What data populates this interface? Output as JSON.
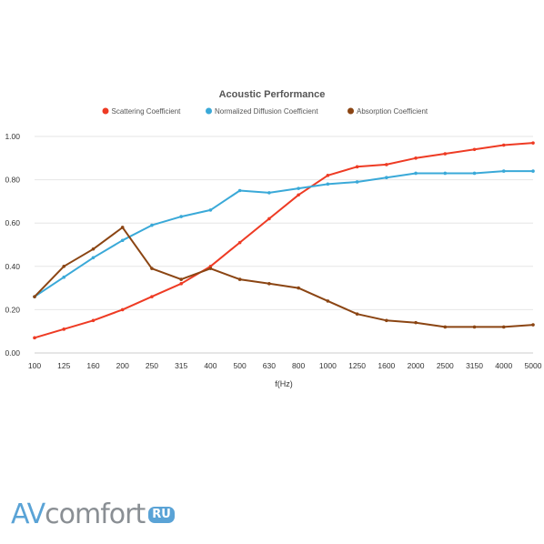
{
  "chart_data": {
    "type": "line",
    "title": "Acoustic Performance",
    "xlabel": "f(Hz)",
    "ylabel": "",
    "ylim": [
      0,
      1
    ],
    "yticks": [
      "0.00",
      "0.20",
      "0.40",
      "0.60",
      "0.80",
      "1.00"
    ],
    "grid": true,
    "legend_position": "top",
    "categories": [
      "100",
      "125",
      "160",
      "200",
      "250",
      "315",
      "400",
      "500",
      "630",
      "800",
      "1000",
      "1250",
      "1600",
      "2000",
      "2500",
      "3150",
      "4000",
      "5000"
    ],
    "series": [
      {
        "name": "Scattering Coefficient",
        "color": "#ee3b24",
        "values": [
          0.07,
          0.11,
          0.15,
          0.2,
          0.26,
          0.32,
          0.4,
          0.51,
          0.62,
          0.73,
          0.82,
          0.86,
          0.87,
          0.9,
          0.92,
          0.94,
          0.96,
          0.97
        ]
      },
      {
        "name": "Normalized Diffusion Coefficient",
        "color": "#3aa9d8",
        "values": [
          0.26,
          0.35,
          0.44,
          0.52,
          0.59,
          0.63,
          0.66,
          0.75,
          0.74,
          0.76,
          0.78,
          0.79,
          0.81,
          0.83,
          0.83,
          0.83,
          0.84,
          0.84
        ]
      },
      {
        "name": "Absorption Coefficient",
        "color": "#8b4513",
        "values": [
          0.26,
          0.4,
          0.48,
          0.58,
          0.39,
          0.34,
          0.39,
          0.34,
          0.32,
          0.3,
          0.24,
          0.18,
          0.15,
          0.14,
          0.12,
          0.12,
          0.12,
          0.13
        ]
      }
    ]
  },
  "logo": {
    "part1": "AV",
    "part2": "comfort",
    "badge": "RU"
  }
}
